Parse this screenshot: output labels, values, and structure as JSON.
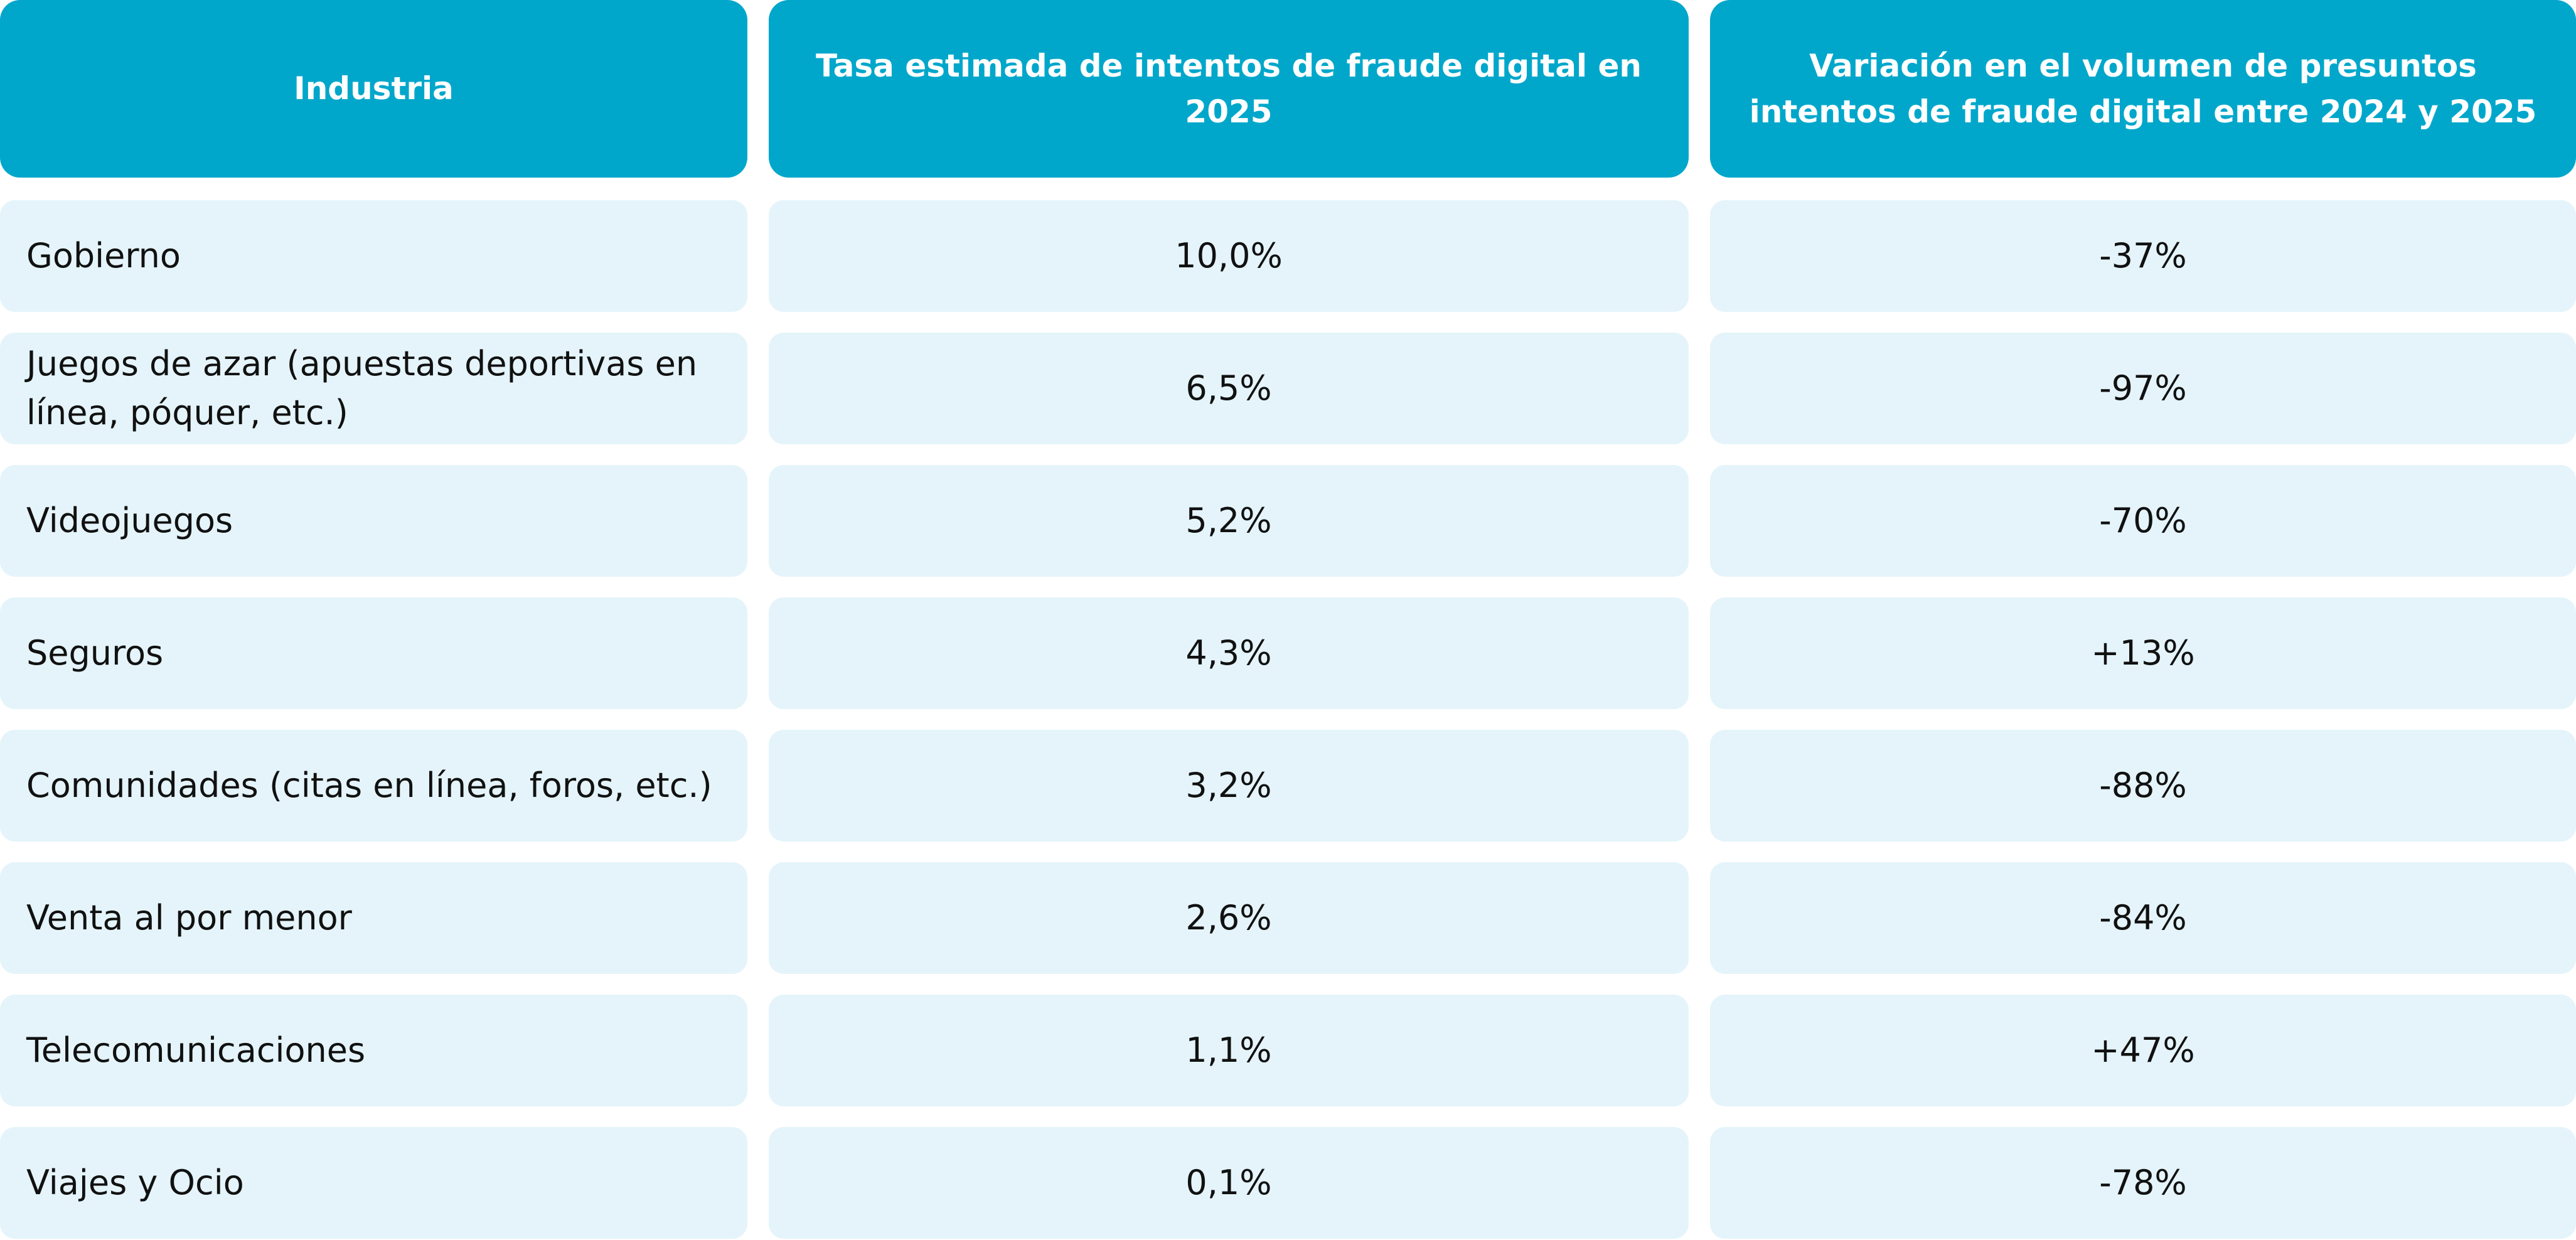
{
  "table": {
    "headers": [
      "Industria",
      "Tasa estimada de intentos de fraude digital en 2025",
      "Variación en el volumen de presuntos intentos de fraude digital entre 2024 y 2025"
    ],
    "rows": [
      [
        "Gobierno",
        "10,0%",
        "-37%"
      ],
      [
        "Juegos de azar (apuestas deportivas en línea, póquer, etc.)",
        "6,5%",
        "-97%"
      ],
      [
        "Videojuegos",
        "5,2%",
        "-70%"
      ],
      [
        "Seguros",
        "4,3%",
        "+13%"
      ],
      [
        "Comunidades (citas en línea, foros, etc.)",
        "3,2%",
        "-88%"
      ],
      [
        "Venta al por menor",
        "2,6%",
        "-84%"
      ],
      [
        "Telecomunicaciones",
        "1,1%",
        "+47%"
      ],
      [
        "Viajes y Ocio",
        "0,1%",
        "-78%"
      ]
    ]
  }
}
